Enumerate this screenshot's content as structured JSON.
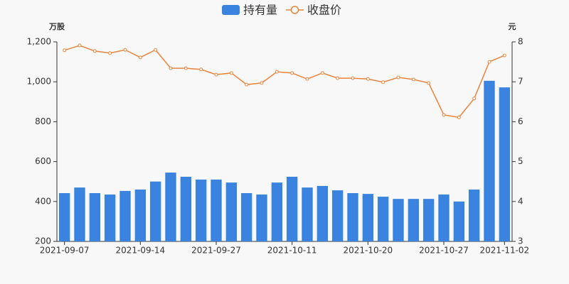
{
  "chart_data": {
    "type": "bar-line",
    "y_unit": "万股",
    "y2_unit": "元",
    "categories": [
      "2021-09-07",
      null,
      null,
      null,
      null,
      "2021-09-14",
      null,
      null,
      null,
      null,
      "2021-09-27",
      null,
      null,
      null,
      null,
      "2021-10-11",
      null,
      null,
      null,
      null,
      "2021-10-20",
      null,
      null,
      null,
      null,
      "2021-10-27",
      null,
      null,
      null,
      "2021-11-02"
    ],
    "series": [
      {
        "name": "持有量",
        "type": "bar",
        "color": "#3a84e0",
        "values": [
          442,
          470,
          442,
          435,
          453,
          460,
          500,
          545,
          524,
          510,
          510,
          495,
          442,
          435,
          495,
          524,
          470,
          478,
          456,
          442,
          438,
          424,
          413,
          413,
          413,
          435,
          400,
          460,
          1005,
          972
        ]
      },
      {
        "name": "收盘价",
        "type": "line",
        "axis": "y2",
        "color": "#e9833c",
        "values": [
          7.79,
          7.91,
          7.77,
          7.72,
          7.8,
          7.61,
          7.8,
          7.34,
          7.34,
          7.31,
          7.18,
          7.22,
          6.93,
          6.97,
          7.25,
          7.22,
          7.07,
          7.22,
          7.09,
          7.09,
          7.07,
          6.99,
          7.11,
          7.06,
          6.97,
          6.17,
          6.11,
          6.58,
          7.5,
          7.66
        ]
      }
    ],
    "ylim": [
      200,
      1200
    ],
    "yticks": [
      200,
      400,
      600,
      800,
      {
        "value": 1000,
        "label": "1,000"
      },
      {
        "value": 1200,
        "label": "1,200"
      }
    ],
    "y2lim": [
      3,
      8
    ],
    "y2ticks": [
      3,
      4,
      5,
      6,
      7,
      8
    ],
    "legend": "top"
  }
}
